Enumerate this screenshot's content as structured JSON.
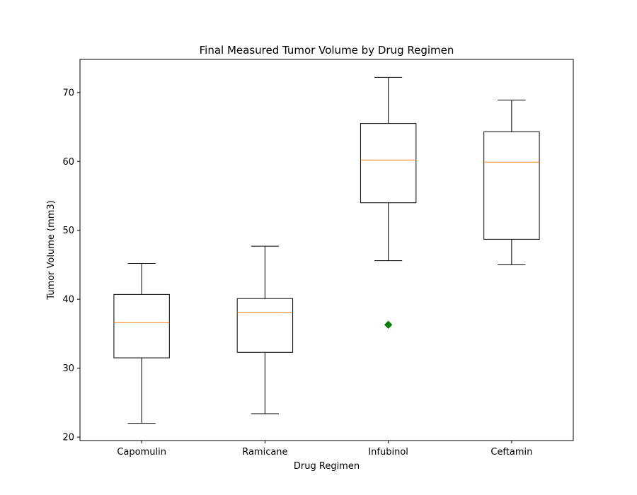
{
  "chart_data": {
    "type": "box",
    "title": "Final Measured Tumor Volume by Drug Regimen",
    "xlabel": "Drug Regimen",
    "ylabel": "Tumor Volume (mm3)",
    "ylim": [
      19.5,
      74.8
    ],
    "yticks": [
      20,
      30,
      40,
      50,
      60,
      70
    ],
    "grid": false,
    "categories": [
      "Capomulin",
      "Ramicane",
      "Infubinol",
      "Ceftamin"
    ],
    "boxes": [
      {
        "name": "Capomulin",
        "whisker_low": 22.0,
        "q1": 31.5,
        "median": 36.6,
        "q3": 40.7,
        "whisker_high": 45.2,
        "outliers": []
      },
      {
        "name": "Ramicane",
        "whisker_low": 23.4,
        "q1": 32.3,
        "median": 38.1,
        "q3": 40.1,
        "whisker_high": 47.7,
        "outliers": []
      },
      {
        "name": "Infubinol",
        "whisker_low": 45.6,
        "q1": 54.0,
        "median": 60.2,
        "q3": 65.5,
        "whisker_high": 72.2,
        "outliers": [
          36.3
        ]
      },
      {
        "name": "Ceftamin",
        "whisker_low": 45.0,
        "q1": 48.7,
        "median": 59.9,
        "q3": 64.3,
        "whisker_high": 68.9,
        "outliers": []
      }
    ],
    "colors": {
      "box": "#000000",
      "median": "#ff7f0e",
      "outlier": "#008000"
    },
    "outlier_marker": "diamond"
  }
}
